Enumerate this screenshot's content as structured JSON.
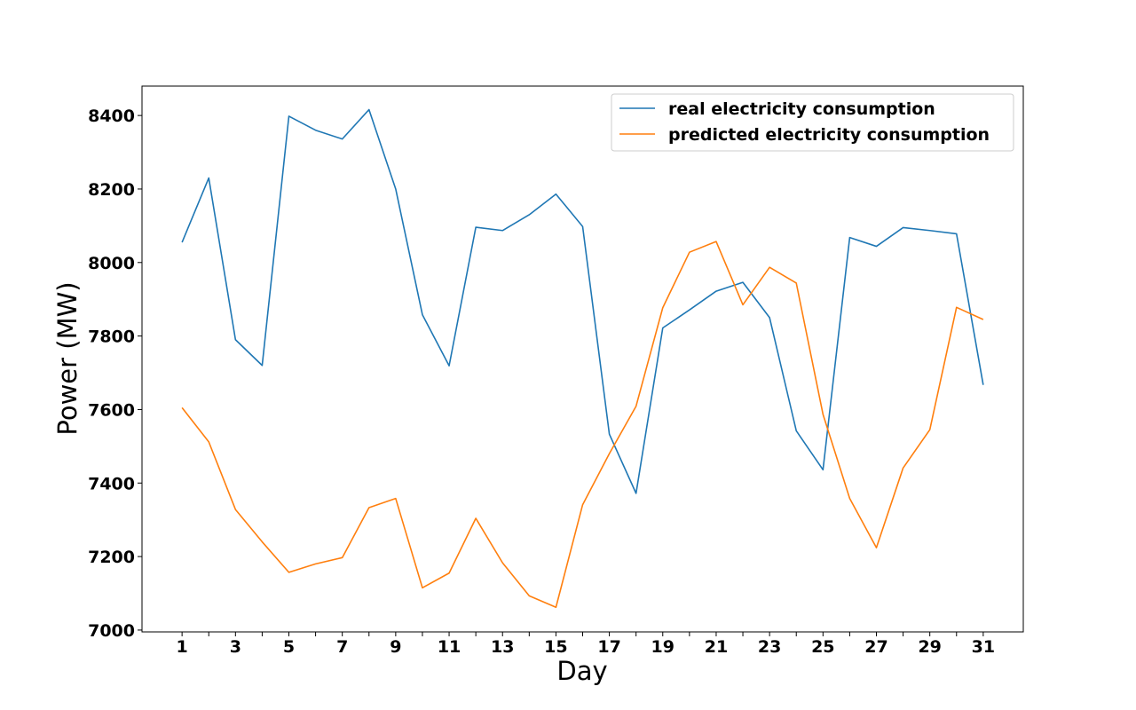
{
  "chart_data": {
    "type": "line",
    "title": "",
    "xlabel": "Day",
    "ylabel": "Power (MW)",
    "x": [
      1,
      2,
      3,
      4,
      5,
      6,
      7,
      8,
      9,
      10,
      11,
      12,
      13,
      14,
      15,
      16,
      17,
      18,
      19,
      20,
      21,
      22,
      23,
      24,
      25,
      26,
      27,
      28,
      29,
      30,
      31
    ],
    "x_ticks": [
      "1",
      "3",
      "5",
      "7",
      "9",
      "11",
      "13",
      "15",
      "17",
      "19",
      "21",
      "23",
      "25",
      "27",
      "29",
      "31"
    ],
    "y_ticks": [
      "7000",
      "7200",
      "7400",
      "7600",
      "7800",
      "8000",
      "8200",
      "8400"
    ],
    "xlim": [
      -0.5,
      32.5
    ],
    "ylim": [
      6995,
      8480
    ],
    "grid": false,
    "legend_position": "top-right",
    "series": [
      {
        "name": "real electricity consumption",
        "color": "#1f77b4",
        "values": [
          8055,
          8230,
          7790,
          7720,
          8398,
          8360,
          8336,
          8416,
          8200,
          7858,
          7719,
          8096,
          8087,
          8130,
          8186,
          8098,
          7533,
          7372,
          7822,
          7871,
          7922,
          7946,
          7850,
          7542,
          7436,
          8068,
          8044,
          8095,
          8087,
          8078,
          7667
        ]
      },
      {
        "name": "predicted electricity consumption",
        "color": "#ff7f0e",
        "values": [
          7605,
          7512,
          7328,
          7240,
          7157,
          7180,
          7197,
          7333,
          7358,
          7115,
          7155,
          7304,
          7183,
          7093,
          7062,
          7341,
          7480,
          7609,
          7877,
          8028,
          8057,
          7885,
          7987,
          7944,
          7587,
          7358,
          7224,
          7441,
          7545,
          7878,
          7845
        ]
      }
    ]
  }
}
